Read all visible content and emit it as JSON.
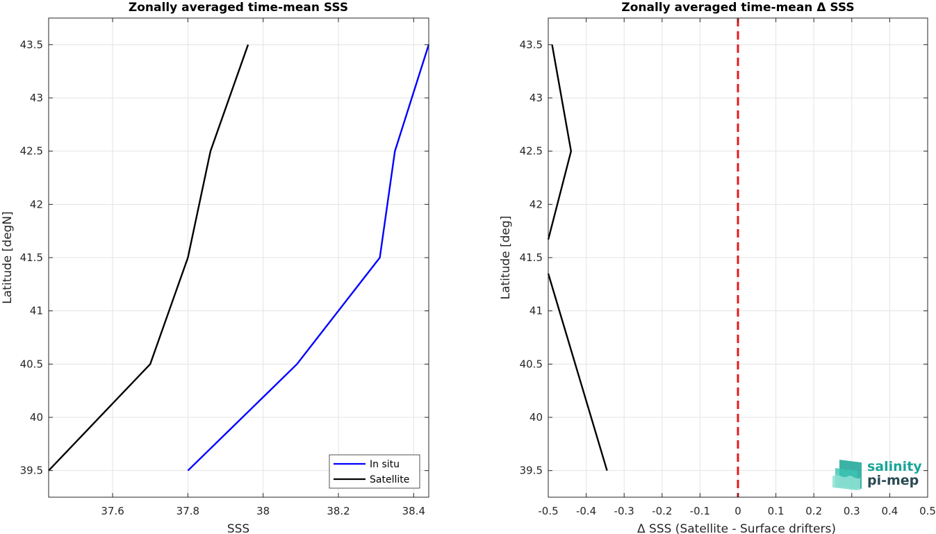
{
  "colors": {
    "in_situ": "#0000ff",
    "satellite": "#000000",
    "zero_line": "#e31a1c",
    "logo_teal": "#1aa597",
    "logo_dark": "#2a4a52"
  },
  "logo": {
    "line1": "salinity",
    "line2": "pi-mep"
  },
  "chart_data": [
    {
      "type": "line",
      "title": "Zonally averaged time-mean SSS",
      "xlabel": "SSS",
      "ylabel": "Latitude [degN]",
      "xlim": [
        37.43,
        38.44
      ],
      "ylim": [
        39.25,
        43.75
      ],
      "xticks": [
        37.6,
        37.8,
        38,
        38.2,
        38.4
      ],
      "xtick_labels": [
        "37.6",
        "37.8",
        "38",
        "38.2",
        "38.4"
      ],
      "yticks": [
        39.5,
        40,
        40.5,
        41,
        41.5,
        42,
        42.5,
        43,
        43.5
      ],
      "ytick_labels": [
        "39.5",
        "40",
        "40.5",
        "41",
        "41.5",
        "42",
        "42.5",
        "43",
        "43.5"
      ],
      "grid": true,
      "legend": "bottom-right",
      "series": [
        {
          "name": "In situ",
          "color_key": "in_situ",
          "points": [
            [
              37.8,
              39.5
            ],
            [
              38.09,
              40.5
            ],
            [
              38.31,
              41.5
            ],
            [
              38.35,
              42.5
            ],
            [
              38.44,
              43.5
            ]
          ]
        },
        {
          "name": "Satellite",
          "color_key": "satellite",
          "points": [
            [
              37.43,
              39.5
            ],
            [
              37.7,
              40.5
            ],
            [
              37.8,
              41.5
            ],
            [
              37.86,
              42.5
            ],
            [
              37.96,
              43.5
            ]
          ]
        }
      ]
    },
    {
      "type": "line",
      "title": "Zonally averaged time-mean Δ SSS",
      "xlabel": "Δ SSS (Satellite - Surface drifters)",
      "ylabel": "Latitude [deg]",
      "xlim": [
        -0.5,
        0.5
      ],
      "ylim": [
        39.25,
        43.75
      ],
      "xticks": [
        -0.5,
        -0.4,
        -0.3,
        -0.2,
        -0.1,
        0,
        0.1,
        0.2,
        0.3,
        0.4,
        0.5
      ],
      "xtick_labels": [
        "-0.5",
        "-0.4",
        "-0.3",
        "-0.2",
        "-0.1",
        "0",
        "0.1",
        "0.2",
        "0.3",
        "0.4",
        "0.5"
      ],
      "yticks": [
        39.5,
        40,
        40.5,
        41,
        41.5,
        42,
        42.5,
        43,
        43.5
      ],
      "ytick_labels": [
        "39.5",
        "40",
        "40.5",
        "41",
        "41.5",
        "42",
        "42.5",
        "43",
        "43.5"
      ],
      "grid": true,
      "reference_line": {
        "x": 0,
        "style": "dashed",
        "color_key": "zero_line"
      },
      "series": [
        {
          "segments": [
            [
              [
                -0.345,
                39.5
              ],
              [
                -0.5,
                41.35
              ]
            ],
            [
              [
                -0.5,
                41.67
              ],
              [
                -0.44,
                42.5
              ],
              [
                -0.49,
                43.5
              ]
            ]
          ],
          "color_key": "satellite"
        }
      ]
    }
  ]
}
